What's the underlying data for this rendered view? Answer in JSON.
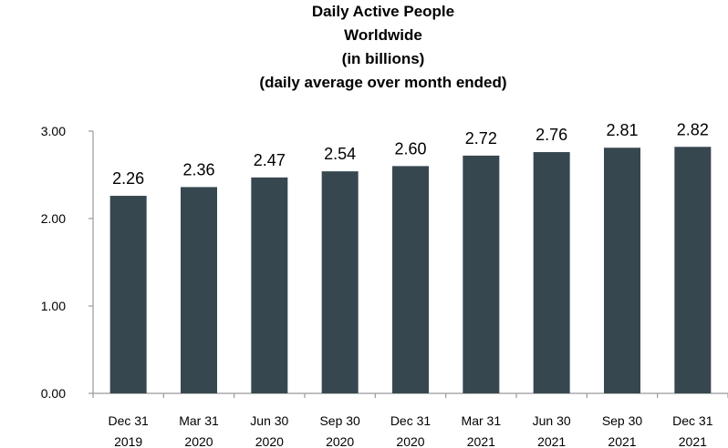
{
  "chart_data": {
    "type": "bar",
    "title_lines": [
      "Daily Active People",
      "Worldwide",
      "(in billions)",
      "(daily average over month ended)"
    ],
    "xlabel": "",
    "ylabel": "",
    "categories": [
      [
        "Dec 31",
        "2019"
      ],
      [
        "Mar 31",
        "2020"
      ],
      [
        "Jun 30",
        "2020"
      ],
      [
        "Sep 30",
        "2020"
      ],
      [
        "Dec 31",
        "2020"
      ],
      [
        "Mar 31",
        "2021"
      ],
      [
        "Jun 30",
        "2021"
      ],
      [
        "Sep 30",
        "2021"
      ],
      [
        "Dec 31",
        "2021"
      ]
    ],
    "values": [
      2.26,
      2.36,
      2.47,
      2.54,
      2.6,
      2.72,
      2.76,
      2.81,
      2.82
    ],
    "value_labels": [
      "2.26",
      "2.36",
      "2.47",
      "2.54",
      "2.60",
      "2.72",
      "2.76",
      "2.81",
      "2.82"
    ],
    "ylim": [
      0,
      3
    ],
    "yticks": [
      0,
      1,
      2,
      3
    ],
    "ytick_labels": [
      "0.00",
      "1.00",
      "2.00",
      "3.00"
    ],
    "grid": false,
    "legend": "none",
    "bar_color": "#36474f",
    "axis_color": "#9a9a9a"
  }
}
